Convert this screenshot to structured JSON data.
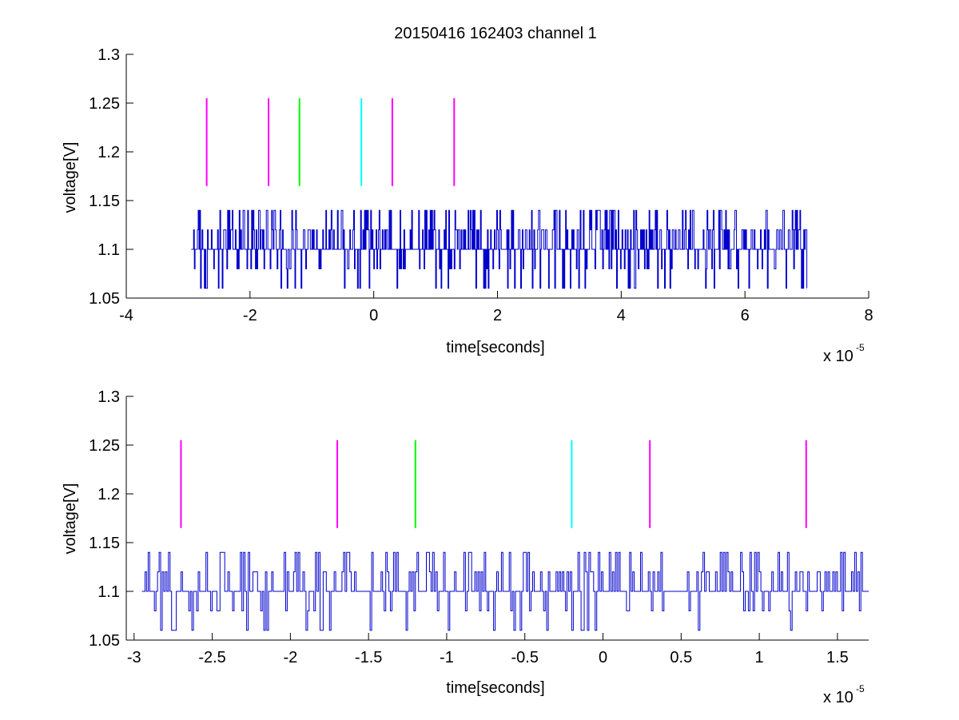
{
  "title": "20150416 162403 channel 1",
  "colors": {
    "signal": "#0000cc",
    "magenta": "#ff00ff",
    "green": "#00ff00",
    "cyan": "#00ffff",
    "axis": "#000000"
  },
  "chart_data": [
    {
      "type": "line",
      "title": "20150416 162403 channel 1",
      "xlabel": "time[seconds]",
      "ylabel": "voltage[V]",
      "x_exponent": "x 10",
      "x_exponent_power": "-5",
      "xlim": [
        -4,
        8
      ],
      "ylim": [
        1.05,
        1.3
      ],
      "xticks": [
        -4,
        -2,
        0,
        2,
        4,
        6,
        8
      ],
      "xtick_labels": [
        "-4",
        "-2",
        "0",
        "2",
        "4",
        "6",
        "8"
      ],
      "yticks": [
        1.05,
        1.1,
        1.15,
        1.2,
        1.25,
        1.3
      ],
      "ytick_labels": [
        "1.05",
        "1.1",
        "1.15",
        "1.2",
        "1.25",
        "1.3"
      ],
      "signal": {
        "x_start": -2.95,
        "x_end": 7.0,
        "levels": [
          1.06,
          1.08,
          1.1,
          1.12,
          1.14
        ],
        "baseline": 1.1
      },
      "markers": [
        {
          "x": -2.7,
          "y_low": 1.165,
          "y_high": 1.255,
          "color": "magenta"
        },
        {
          "x": -1.7,
          "y_low": 1.165,
          "y_high": 1.255,
          "color": "magenta"
        },
        {
          "x": -1.2,
          "y_low": 1.165,
          "y_high": 1.255,
          "color": "green"
        },
        {
          "x": -0.2,
          "y_low": 1.165,
          "y_high": 1.255,
          "color": "cyan"
        },
        {
          "x": 0.3,
          "y_low": 1.165,
          "y_high": 1.255,
          "color": "magenta"
        },
        {
          "x": 1.3,
          "y_low": 1.165,
          "y_high": 1.255,
          "color": "magenta"
        }
      ]
    },
    {
      "type": "line",
      "xlabel": "time[seconds]",
      "ylabel": "voltage[V]",
      "x_exponent": "x 10",
      "x_exponent_power": "-5",
      "xlim": [
        -3.05,
        1.7
      ],
      "ylim": [
        1.05,
        1.3
      ],
      "xticks": [
        -3,
        -2.5,
        -2,
        -1.5,
        -1,
        -0.5,
        0,
        0.5,
        1,
        1.5
      ],
      "xtick_labels": [
        "-3",
        "-2.5",
        "-2",
        "-1.5",
        "-1",
        "-0.5",
        "0",
        "0.5",
        "1",
        "1.5"
      ],
      "yticks": [
        1.05,
        1.1,
        1.15,
        1.2,
        1.25,
        1.3
      ],
      "ytick_labels": [
        "1.05",
        "1.1",
        "1.15",
        "1.2",
        "1.25",
        "1.3"
      ],
      "signal": {
        "x_start": -2.95,
        "x_end": 1.7,
        "levels": [
          1.06,
          1.08,
          1.1,
          1.12,
          1.14
        ],
        "baseline": 1.1
      },
      "markers": [
        {
          "x": -2.7,
          "y_low": 1.165,
          "y_high": 1.255,
          "color": "magenta"
        },
        {
          "x": -1.7,
          "y_low": 1.165,
          "y_high": 1.255,
          "color": "magenta"
        },
        {
          "x": -1.2,
          "y_low": 1.165,
          "y_high": 1.255,
          "color": "green"
        },
        {
          "x": -0.2,
          "y_low": 1.165,
          "y_high": 1.255,
          "color": "cyan"
        },
        {
          "x": 0.3,
          "y_low": 1.165,
          "y_high": 1.255,
          "color": "magenta"
        },
        {
          "x": 1.3,
          "y_low": 1.165,
          "y_high": 1.255,
          "color": "magenta"
        }
      ]
    }
  ]
}
